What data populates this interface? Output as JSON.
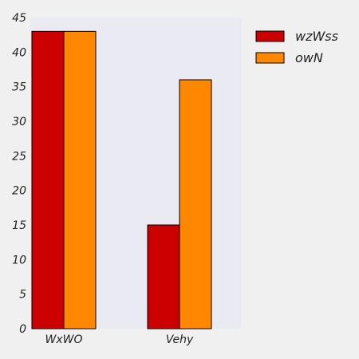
{
  "chart_data": {
    "type": "bar",
    "categories": [
      "WxWO",
      "Vehy"
    ],
    "series": [
      {
        "name": "wzWss",
        "values": [
          43,
          15
        ],
        "color": "#cc0000"
      },
      {
        "name": "owN",
        "values": [
          43,
          36
        ],
        "color": "#ff8800"
      }
    ],
    "ylim": [
      0,
      45
    ],
    "yticks": [
      0,
      5,
      10,
      15,
      20,
      25,
      30,
      35,
      40,
      45
    ],
    "title": "",
    "xlabel": "",
    "ylabel": "",
    "grid": false,
    "legend_position": "top-right outside plot",
    "plot_background": "#eaeaf2",
    "figure_background": "#f0f0f0",
    "bar_edge_color": "#000000"
  }
}
